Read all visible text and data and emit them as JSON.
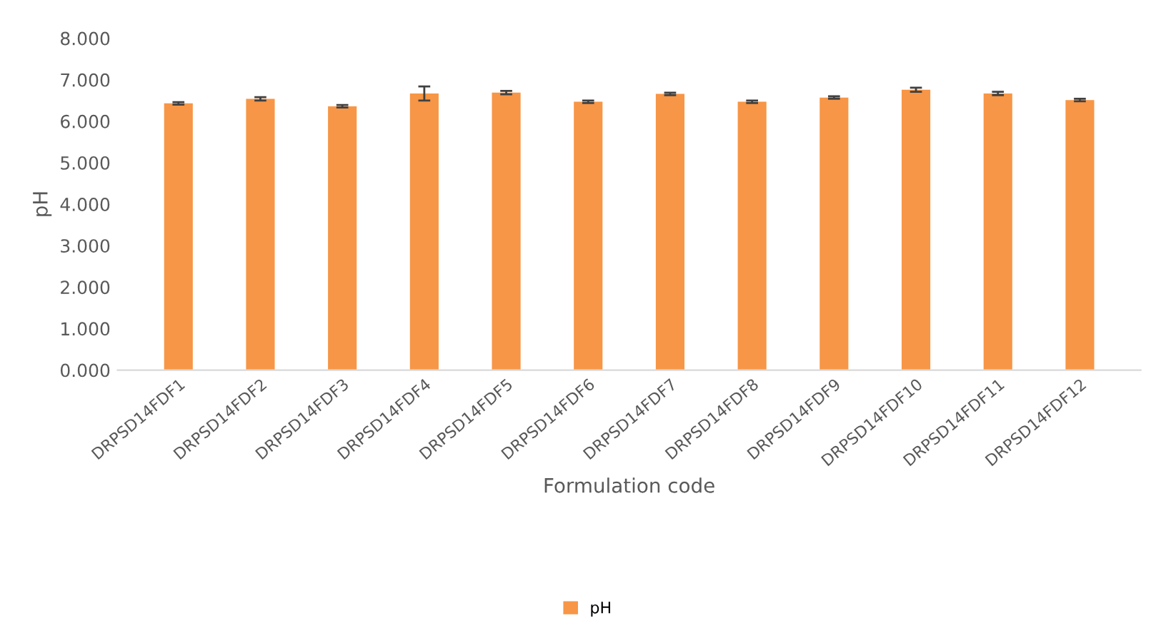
{
  "chart_data": {
    "type": "bar",
    "xlabel": "Formulation code",
    "ylabel": "pH",
    "categories": [
      "DRPSD14FDF1",
      "DRPSD14FDF2",
      "DRPSD14FDF3",
      "DRPSD14FDF4",
      "DRPSD14FDF5",
      "DRPSD14FDF6",
      "DRPSD14FDF7",
      "DRPSD14FDF8",
      "DRPSD14FDF9",
      "DRPSD14FDF10",
      "DRPSD14FDF11",
      "DRPSD14FDF12"
    ],
    "series": [
      {
        "name": "pH",
        "color": "#f79646",
        "values": [
          6.43,
          6.54,
          6.36,
          6.67,
          6.69,
          6.47,
          6.66,
          6.47,
          6.57,
          6.76,
          6.67,
          6.51
        ],
        "errors": [
          0.03,
          0.04,
          0.03,
          0.17,
          0.04,
          0.03,
          0.03,
          0.03,
          0.03,
          0.05,
          0.04,
          0.03
        ]
      }
    ],
    "ylim": [
      0,
      8
    ],
    "yticks": [
      {
        "value": 0,
        "label": "0.000"
      },
      {
        "value": 1,
        "label": "1.000"
      },
      {
        "value": 2,
        "label": "2.000"
      },
      {
        "value": 3,
        "label": "3.000"
      },
      {
        "value": 4,
        "label": "4.000"
      },
      {
        "value": 5,
        "label": "5.000"
      },
      {
        "value": 6,
        "label": "6.000"
      },
      {
        "value": 7,
        "label": "7.000"
      },
      {
        "value": 8,
        "label": "8.000"
      }
    ],
    "grid": false,
    "legend": "bottom"
  }
}
